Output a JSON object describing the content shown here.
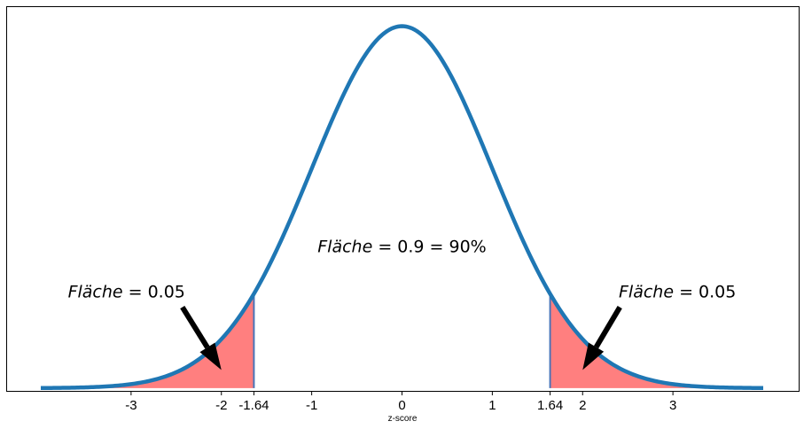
{
  "chart_data": {
    "type": "area",
    "distribution": "standard-normal",
    "xlim": [
      -4,
      4
    ],
    "ylim": [
      -0.004,
      0.42
    ],
    "xlabel": "z-score",
    "xticks": [
      -3,
      -2,
      -1.64,
      -1,
      0,
      1,
      1.64,
      2,
      3
    ],
    "xtick_labels": [
      "-3",
      "-2",
      "-1.64",
      "-1",
      "0",
      "1",
      "1.64",
      "2",
      "3"
    ],
    "shaded_regions": [
      {
        "name": "left-tail",
        "from": -4,
        "to": -1.64,
        "area": 0.05
      },
      {
        "name": "right-tail",
        "from": 1.64,
        "to": 4,
        "area": 0.05
      }
    ],
    "annotations": [
      {
        "id": "center",
        "word": "Fläche",
        "rest": " = 0.9 = 90%",
        "x": 0,
        "y": 0.15
      },
      {
        "id": "left",
        "word": "Fläche",
        "rest": " = 0.05",
        "x": -3.7,
        "y": 0.1,
        "arrow_to": [
          -2,
          0.02
        ]
      },
      {
        "id": "right",
        "word": "Fläche",
        "rest": " = 0.05",
        "x": 2.4,
        "y": 0.1,
        "arrow_to": [
          2,
          0.02
        ]
      }
    ],
    "colors": {
      "curve": "#1f77b4",
      "fill": "#ff7f7f",
      "edge": "#4a74b8",
      "arrow": "#000000"
    }
  }
}
